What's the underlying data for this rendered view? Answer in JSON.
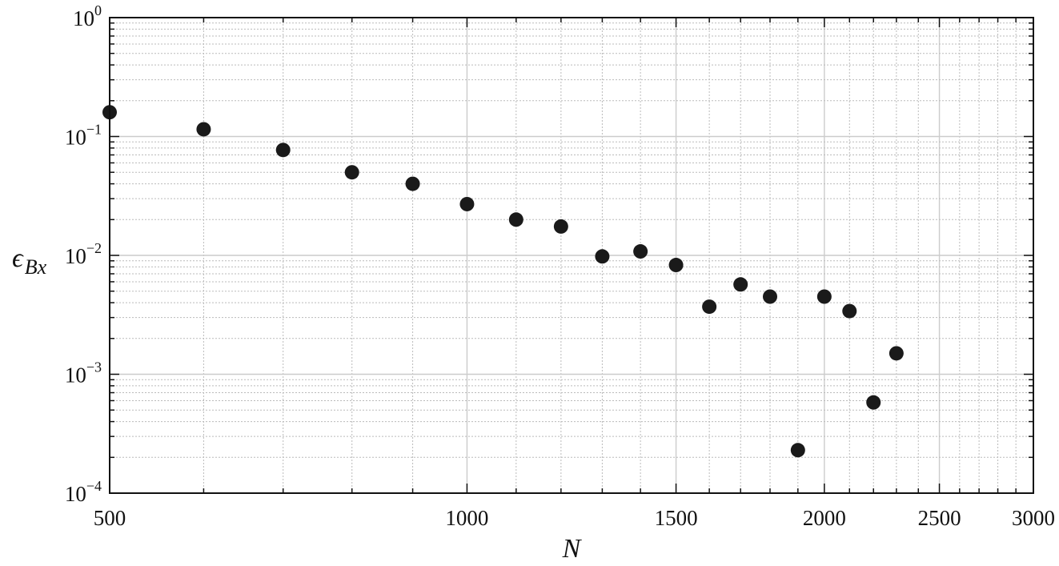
{
  "chart_data": {
    "type": "scatter",
    "xlabel": "N",
    "ylabel": {
      "base": "ϵ",
      "subscript": "Bx"
    },
    "x_scale": "log",
    "y_scale": "log",
    "xlim": [
      500,
      3000
    ],
    "ylim": [
      0.0001,
      1
    ],
    "x_ticks": [
      {
        "value": 500,
        "label": "500"
      },
      {
        "value": 1000,
        "label": "1000"
      },
      {
        "value": 1500,
        "label": "1500"
      },
      {
        "value": 2000,
        "label": "2000"
      },
      {
        "value": 2500,
        "label": "2500"
      },
      {
        "value": 3000,
        "label": "3000"
      }
    ],
    "y_ticks": [
      {
        "value": 1,
        "base": "10",
        "exp": "0"
      },
      {
        "value": 0.1,
        "base": "10",
        "exp": "−1"
      },
      {
        "value": 0.01,
        "base": "10",
        "exp": "−2"
      },
      {
        "value": 0.001,
        "base": "10",
        "exp": "−3"
      },
      {
        "value": 0.0001,
        "base": "10",
        "exp": "−4"
      }
    ],
    "grid": true,
    "marker_color": "#1a1a1a",
    "grid_major_color": "#cccccc",
    "grid_minor_color": "#bbbbbb",
    "x": [
      500,
      600,
      700,
      800,
      900,
      1000,
      1100,
      1200,
      1300,
      1400,
      1500,
      1600,
      1700,
      1800,
      1900,
      2000,
      2100,
      2200,
      2300
    ],
    "y": [
      0.16,
      0.115,
      0.077,
      0.05,
      0.04,
      0.027,
      0.02,
      0.0175,
      0.0098,
      0.0108,
      0.0083,
      0.0037,
      0.0057,
      0.0045,
      0.00023,
      0.0045,
      0.0034,
      0.00058,
      0.0015
    ]
  }
}
